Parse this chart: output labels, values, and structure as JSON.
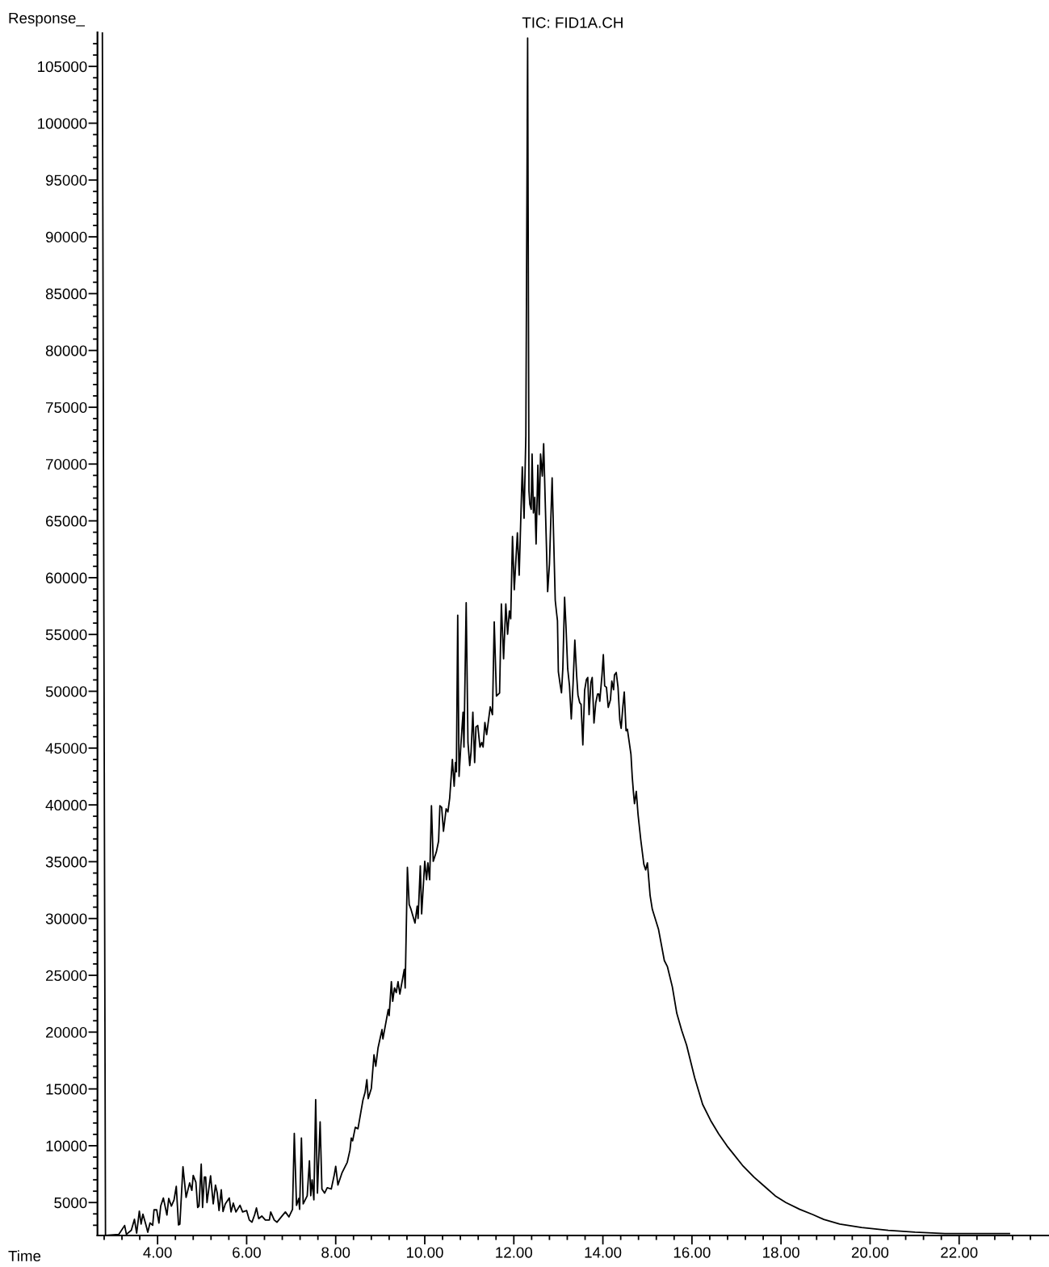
{
  "chart_data": {
    "type": "line",
    "title": "TIC: FID1A.CH",
    "xlabel": "Time",
    "ylabel": "Response_",
    "xlim": [
      2.65,
      24.0
    ],
    "ylim": [
      2100,
      108000
    ],
    "xticks": [
      {
        "value": 2.8,
        "label": null
      },
      {
        "value": 3.2,
        "label": null
      },
      {
        "value": 3.6,
        "label": null
      },
      {
        "value": 4,
        "label": "4.00"
      },
      {
        "value": 4.4,
        "label": null
      },
      {
        "value": 4.8,
        "label": null
      },
      {
        "value": 5.2,
        "label": null
      },
      {
        "value": 5.6,
        "label": null
      },
      {
        "value": 6,
        "label": "6.00"
      },
      {
        "value": 6.4,
        "label": null
      },
      {
        "value": 6.8,
        "label": null
      },
      {
        "value": 7.2,
        "label": null
      },
      {
        "value": 7.6,
        "label": null
      },
      {
        "value": 8,
        "label": "8.00"
      },
      {
        "value": 8.4,
        "label": null
      },
      {
        "value": 8.8,
        "label": null
      },
      {
        "value": 9.2,
        "label": null
      },
      {
        "value": 9.6,
        "label": null
      },
      {
        "value": 10,
        "label": "10.00"
      },
      {
        "value": 10.4,
        "label": null
      },
      {
        "value": 10.8,
        "label": null
      },
      {
        "value": 11.2,
        "label": null
      },
      {
        "value": 11.6,
        "label": null
      },
      {
        "value": 12,
        "label": "12.00"
      },
      {
        "value": 12.4,
        "label": null
      },
      {
        "value": 12.8,
        "label": null
      },
      {
        "value": 13.2,
        "label": null
      },
      {
        "value": 13.6,
        "label": null
      },
      {
        "value": 14,
        "label": "14.00"
      },
      {
        "value": 14.4,
        "label": null
      },
      {
        "value": 14.8,
        "label": null
      },
      {
        "value": 15.2,
        "label": null
      },
      {
        "value": 15.6,
        "label": null
      },
      {
        "value": 16,
        "label": "16.00"
      },
      {
        "value": 16.4,
        "label": null
      },
      {
        "value": 16.8,
        "label": null
      },
      {
        "value": 17.2,
        "label": null
      },
      {
        "value": 17.6,
        "label": null
      },
      {
        "value": 18,
        "label": "18.00"
      },
      {
        "value": 18.4,
        "label": null
      },
      {
        "value": 18.8,
        "label": null
      },
      {
        "value": 19.2,
        "label": null
      },
      {
        "value": 19.6,
        "label": null
      },
      {
        "value": 20,
        "label": "20.00"
      },
      {
        "value": 20.4,
        "label": null
      },
      {
        "value": 20.8,
        "label": null
      },
      {
        "value": 21.2,
        "label": null
      },
      {
        "value": 21.6,
        "label": null
      },
      {
        "value": 22,
        "label": "22.00"
      },
      {
        "value": 22.4,
        "label": null
      },
      {
        "value": 22.8,
        "label": null
      },
      {
        "value": 23.2,
        "label": null
      },
      {
        "value": 23.6,
        "label": null
      }
    ],
    "yticks": [
      {
        "value": 3000,
        "label": null
      },
      {
        "value": 4000,
        "label": null
      },
      5000,
      {
        "value": 6000,
        "label": null
      },
      {
        "value": 7000,
        "label": null
      },
      {
        "value": 8000,
        "label": null
      },
      {
        "value": 9000,
        "label": null
      },
      10000,
      {
        "value": 11000,
        "label": null
      },
      {
        "value": 12000,
        "label": null
      },
      {
        "value": 13000,
        "label": null
      },
      {
        "value": 14000,
        "label": null
      },
      15000,
      {
        "value": 16000,
        "label": null
      },
      {
        "value": 17000,
        "label": null
      },
      {
        "value": 18000,
        "label": null
      },
      {
        "value": 19000,
        "label": null
      },
      20000,
      {
        "value": 21000,
        "label": null
      },
      {
        "value": 22000,
        "label": null
      },
      {
        "value": 23000,
        "label": null
      },
      {
        "value": 24000,
        "label": null
      },
      25000,
      {
        "value": 26000,
        "label": null
      },
      {
        "value": 27000,
        "label": null
      },
      {
        "value": 28000,
        "label": null
      },
      {
        "value": 29000,
        "label": null
      },
      30000,
      {
        "value": 31000,
        "label": null
      },
      {
        "value": 32000,
        "label": null
      },
      {
        "value": 33000,
        "label": null
      },
      {
        "value": 34000,
        "label": null
      },
      35000,
      {
        "value": 36000,
        "label": null
      },
      {
        "value": 37000,
        "label": null
      },
      {
        "value": 38000,
        "label": null
      },
      {
        "value": 39000,
        "label": null
      },
      40000,
      {
        "value": 41000,
        "label": null
      },
      {
        "value": 42000,
        "label": null
      },
      {
        "value": 43000,
        "label": null
      },
      {
        "value": 44000,
        "label": null
      },
      45000,
      {
        "value": 46000,
        "label": null
      },
      {
        "value": 47000,
        "label": null
      },
      {
        "value": 48000,
        "label": null
      },
      {
        "value": 49000,
        "label": null
      },
      50000,
      {
        "value": 51000,
        "label": null
      },
      {
        "value": 52000,
        "label": null
      },
      {
        "value": 53000,
        "label": null
      },
      {
        "value": 54000,
        "label": null
      },
      55000,
      {
        "value": 56000,
        "label": null
      },
      {
        "value": 57000,
        "label": null
      },
      {
        "value": 58000,
        "label": null
      },
      {
        "value": 59000,
        "label": null
      },
      60000,
      {
        "value": 61000,
        "label": null
      },
      {
        "value": 62000,
        "label": null
      },
      {
        "value": 63000,
        "label": null
      },
      {
        "value": 64000,
        "label": null
      },
      65000,
      {
        "value": 66000,
        "label": null
      },
      {
        "value": 67000,
        "label": null
      },
      {
        "value": 68000,
        "label": null
      },
      {
        "value": 69000,
        "label": null
      },
      70000,
      {
        "value": 71000,
        "label": null
      },
      {
        "value": 72000,
        "label": null
      },
      {
        "value": 73000,
        "label": null
      },
      {
        "value": 74000,
        "label": null
      },
      75000,
      {
        "value": 76000,
        "label": null
      },
      {
        "value": 77000,
        "label": null
      },
      {
        "value": 78000,
        "label": null
      },
      {
        "value": 79000,
        "label": null
      },
      80000,
      {
        "value": 81000,
        "label": null
      },
      {
        "value": 82000,
        "label": null
      },
      {
        "value": 83000,
        "label": null
      },
      {
        "value": 84000,
        "label": null
      },
      85000,
      {
        "value": 86000,
        "label": null
      },
      {
        "value": 87000,
        "label": null
      },
      {
        "value": 88000,
        "label": null
      },
      {
        "value": 89000,
        "label": null
      },
      90000,
      {
        "value": 91000,
        "label": null
      },
      {
        "value": 92000,
        "label": null
      },
      {
        "value": 93000,
        "label": null
      },
      {
        "value": 94000,
        "label": null
      },
      95000,
      {
        "value": 96000,
        "label": null
      },
      {
        "value": 97000,
        "label": null
      },
      {
        "value": 98000,
        "label": null
      },
      {
        "value": 99000,
        "label": null
      },
      100000,
      {
        "value": 101000,
        "label": null
      },
      {
        "value": 102000,
        "label": null
      },
      {
        "value": 103000,
        "label": null
      },
      {
        "value": 104000,
        "label": null
      },
      105000,
      {
        "value": 106000,
        "label": null
      },
      {
        "value": 107000,
        "label": null
      }
    ],
    "grid": false,
    "legend": false,
    "marker": "none",
    "line_style": "solid",
    "series": [
      {
        "color": "#000000",
        "x": [
          2.76,
          2.83,
          3.13,
          3.26,
          3.3,
          3.41,
          3.48,
          3.53,
          3.59,
          3.63,
          3.67,
          3.74,
          3.78,
          3.83,
          3.89,
          3.92,
          3.98,
          4.03,
          4.07,
          4.13,
          4.21,
          4.25,
          4.31,
          4.37,
          4.42,
          4.47,
          4.5,
          4.57,
          4.64,
          4.72,
          4.77,
          4.8,
          4.86,
          4.9,
          4.93,
          4.98,
          5.01,
          5.05,
          5.08,
          5.11,
          5.19,
          5.25,
          5.3,
          5.34,
          5.38,
          5.43,
          5.47,
          5.52,
          5.61,
          5.65,
          5.7,
          5.76,
          5.85,
          5.91,
          6.0,
          6.06,
          6.12,
          6.18,
          6.22,
          6.27,
          6.34,
          6.42,
          6.51,
          6.54,
          6.62,
          6.68,
          6.78,
          6.87,
          6.95,
          7.03,
          7.07,
          7.12,
          7.17,
          7.19,
          7.23,
          7.27,
          7.36,
          7.41,
          7.44,
          7.47,
          7.51,
          7.55,
          7.59,
          7.65,
          7.69,
          7.75,
          7.81,
          7.9,
          7.97,
          8.0,
          8.05,
          8.14,
          8.26,
          8.32,
          8.35,
          8.38,
          8.44,
          8.5,
          8.61,
          8.66,
          8.7,
          8.73,
          8.8,
          8.86,
          8.9,
          8.95,
          9.04,
          9.06,
          9.18,
          9.2,
          9.25,
          9.28,
          9.32,
          9.36,
          9.4,
          9.44,
          9.54,
          9.56,
          9.61,
          9.65,
          9.69,
          9.74,
          9.78,
          9.83,
          9.85,
          9.9,
          9.93,
          10.0,
          10.04,
          10.07,
          10.11,
          10.15,
          10.19,
          10.26,
          10.31,
          10.34,
          10.38,
          10.42,
          10.48,
          10.52,
          10.56,
          10.62,
          10.66,
          10.69,
          10.71,
          10.74,
          10.77,
          10.81,
          10.86,
          10.88,
          10.93,
          10.97,
          11.01,
          11.04,
          11.08,
          11.12,
          11.15,
          11.19,
          11.24,
          11.28,
          11.31,
          11.35,
          11.39,
          11.47,
          11.52,
          11.56,
          11.61,
          11.68,
          11.72,
          11.77,
          11.82,
          11.86,
          11.9,
          11.93,
          11.97,
          12.01,
          12.08,
          12.12,
          12.19,
          12.23,
          12.27,
          12.31,
          12.34,
          12.36,
          12.39,
          12.41,
          12.44,
          12.47,
          12.5,
          12.54,
          12.57,
          12.6,
          12.64,
          12.67,
          12.76,
          12.8,
          12.86,
          12.93,
          12.96,
          12.98,
          13.0,
          13.04,
          13.07,
          13.1,
          13.14,
          13.17,
          13.21,
          13.25,
          13.29,
          13.33,
          13.37,
          13.41,
          13.44,
          13.48,
          13.51,
          13.55,
          13.59,
          13.63,
          13.66,
          13.69,
          13.73,
          13.76,
          13.8,
          13.84,
          13.88,
          13.91,
          13.93,
          13.98,
          14.01,
          14.04,
          14.08,
          14.12,
          14.17,
          14.2,
          14.24,
          14.26,
          14.3,
          14.34,
          14.38,
          14.41,
          14.45,
          14.48,
          14.52,
          14.55,
          14.63,
          14.66,
          14.69,
          14.71,
          14.75,
          14.79,
          14.85,
          14.92,
          14.96,
          15.0,
          15.06,
          15.11,
          15.25,
          15.38,
          15.45,
          15.56,
          15.66,
          15.77,
          15.88,
          16.06,
          16.24,
          16.42,
          16.6,
          16.79,
          16.91,
          17.15,
          17.39,
          17.63,
          17.87,
          18.11,
          18.42,
          18.72,
          18.96,
          19.32,
          19.81,
          20.41,
          21.01,
          21.68,
          23.13
        ],
        "values": [
          108000,
          2100,
          2200,
          2980,
          2200,
          2560,
          3530,
          2300,
          4240,
          3100,
          3980,
          3000,
          2390,
          3200,
          3000,
          4360,
          4360,
          3200,
          4690,
          5400,
          3900,
          5360,
          4690,
          5240,
          6420,
          3030,
          3100,
          8150,
          5450,
          6730,
          6070,
          7390,
          6780,
          4570,
          4690,
          8380,
          4570,
          7240,
          7240,
          5000,
          7360,
          4880,
          6540,
          5830,
          4290,
          6120,
          4210,
          4880,
          5400,
          4170,
          4950,
          4170,
          4760,
          4170,
          4290,
          3460,
          3270,
          3930,
          4520,
          3580,
          3810,
          3460,
          3460,
          4170,
          3460,
          3270,
          3740,
          4170,
          3740,
          4400,
          11080,
          4760,
          5360,
          4400,
          10680,
          4880,
          5600,
          8670,
          5600,
          7000,
          5240,
          14060,
          5830,
          12100,
          6190,
          5830,
          6310,
          6190,
          7480,
          8190,
          6540,
          7600,
          8550,
          9610,
          10680,
          10440,
          11620,
          11500,
          13990,
          14700,
          15810,
          14150,
          15050,
          18000,
          17000,
          18600,
          20220,
          19400,
          21990,
          21450,
          24440,
          22720,
          23890,
          23480,
          24440,
          23350,
          25520,
          23890,
          34500,
          31230,
          30820,
          30140,
          29600,
          31090,
          30000,
          34630,
          30410,
          35040,
          33410,
          34900,
          33410,
          39930,
          35040,
          35860,
          36810,
          39930,
          39790,
          37680,
          39660,
          39390,
          40610,
          44000,
          41640,
          43730,
          42910,
          56700,
          42510,
          45220,
          48160,
          45090,
          57790,
          45490,
          43460,
          44680,
          48160,
          43730,
          46860,
          46990,
          45090,
          45490,
          45090,
          47260,
          46180,
          48630,
          47940,
          56110,
          49580,
          49850,
          57680,
          52860,
          57680,
          55020,
          57060,
          56380,
          63620,
          58940,
          63940,
          60220,
          69750,
          65240,
          72490,
          107500,
          67650,
          66460,
          66020,
          70880,
          65700,
          67070,
          62970,
          69900,
          65560,
          70880,
          68940,
          71790,
          58770,
          61200,
          68780,
          58000,
          56900,
          56220,
          51710,
          50620,
          49860,
          51980,
          58270,
          55810,
          51980,
          50480,
          47560,
          50620,
          54500,
          51430,
          49670,
          48990,
          48850,
          45290,
          50080,
          51030,
          51220,
          47940,
          50760,
          51220,
          47210,
          48990,
          49750,
          49750,
          49120,
          51430,
          53220,
          50480,
          50350,
          48580,
          49260,
          50890,
          50130,
          51430,
          51650,
          50350,
          47480,
          46740,
          48720,
          49940,
          46530,
          46660,
          44470,
          42420,
          40920,
          40100,
          41190,
          39140,
          36950,
          34770,
          34280,
          34900,
          32040,
          30810,
          29030,
          26300,
          25750,
          23980,
          21650,
          20150,
          18850,
          16010,
          13640,
          12220,
          11040,
          9970,
          9380,
          8200,
          7250,
          6420,
          5590,
          5000,
          4400,
          3930,
          3510,
          3100,
          2800,
          2560,
          2390,
          2270,
          2270
        ]
      }
    ]
  }
}
